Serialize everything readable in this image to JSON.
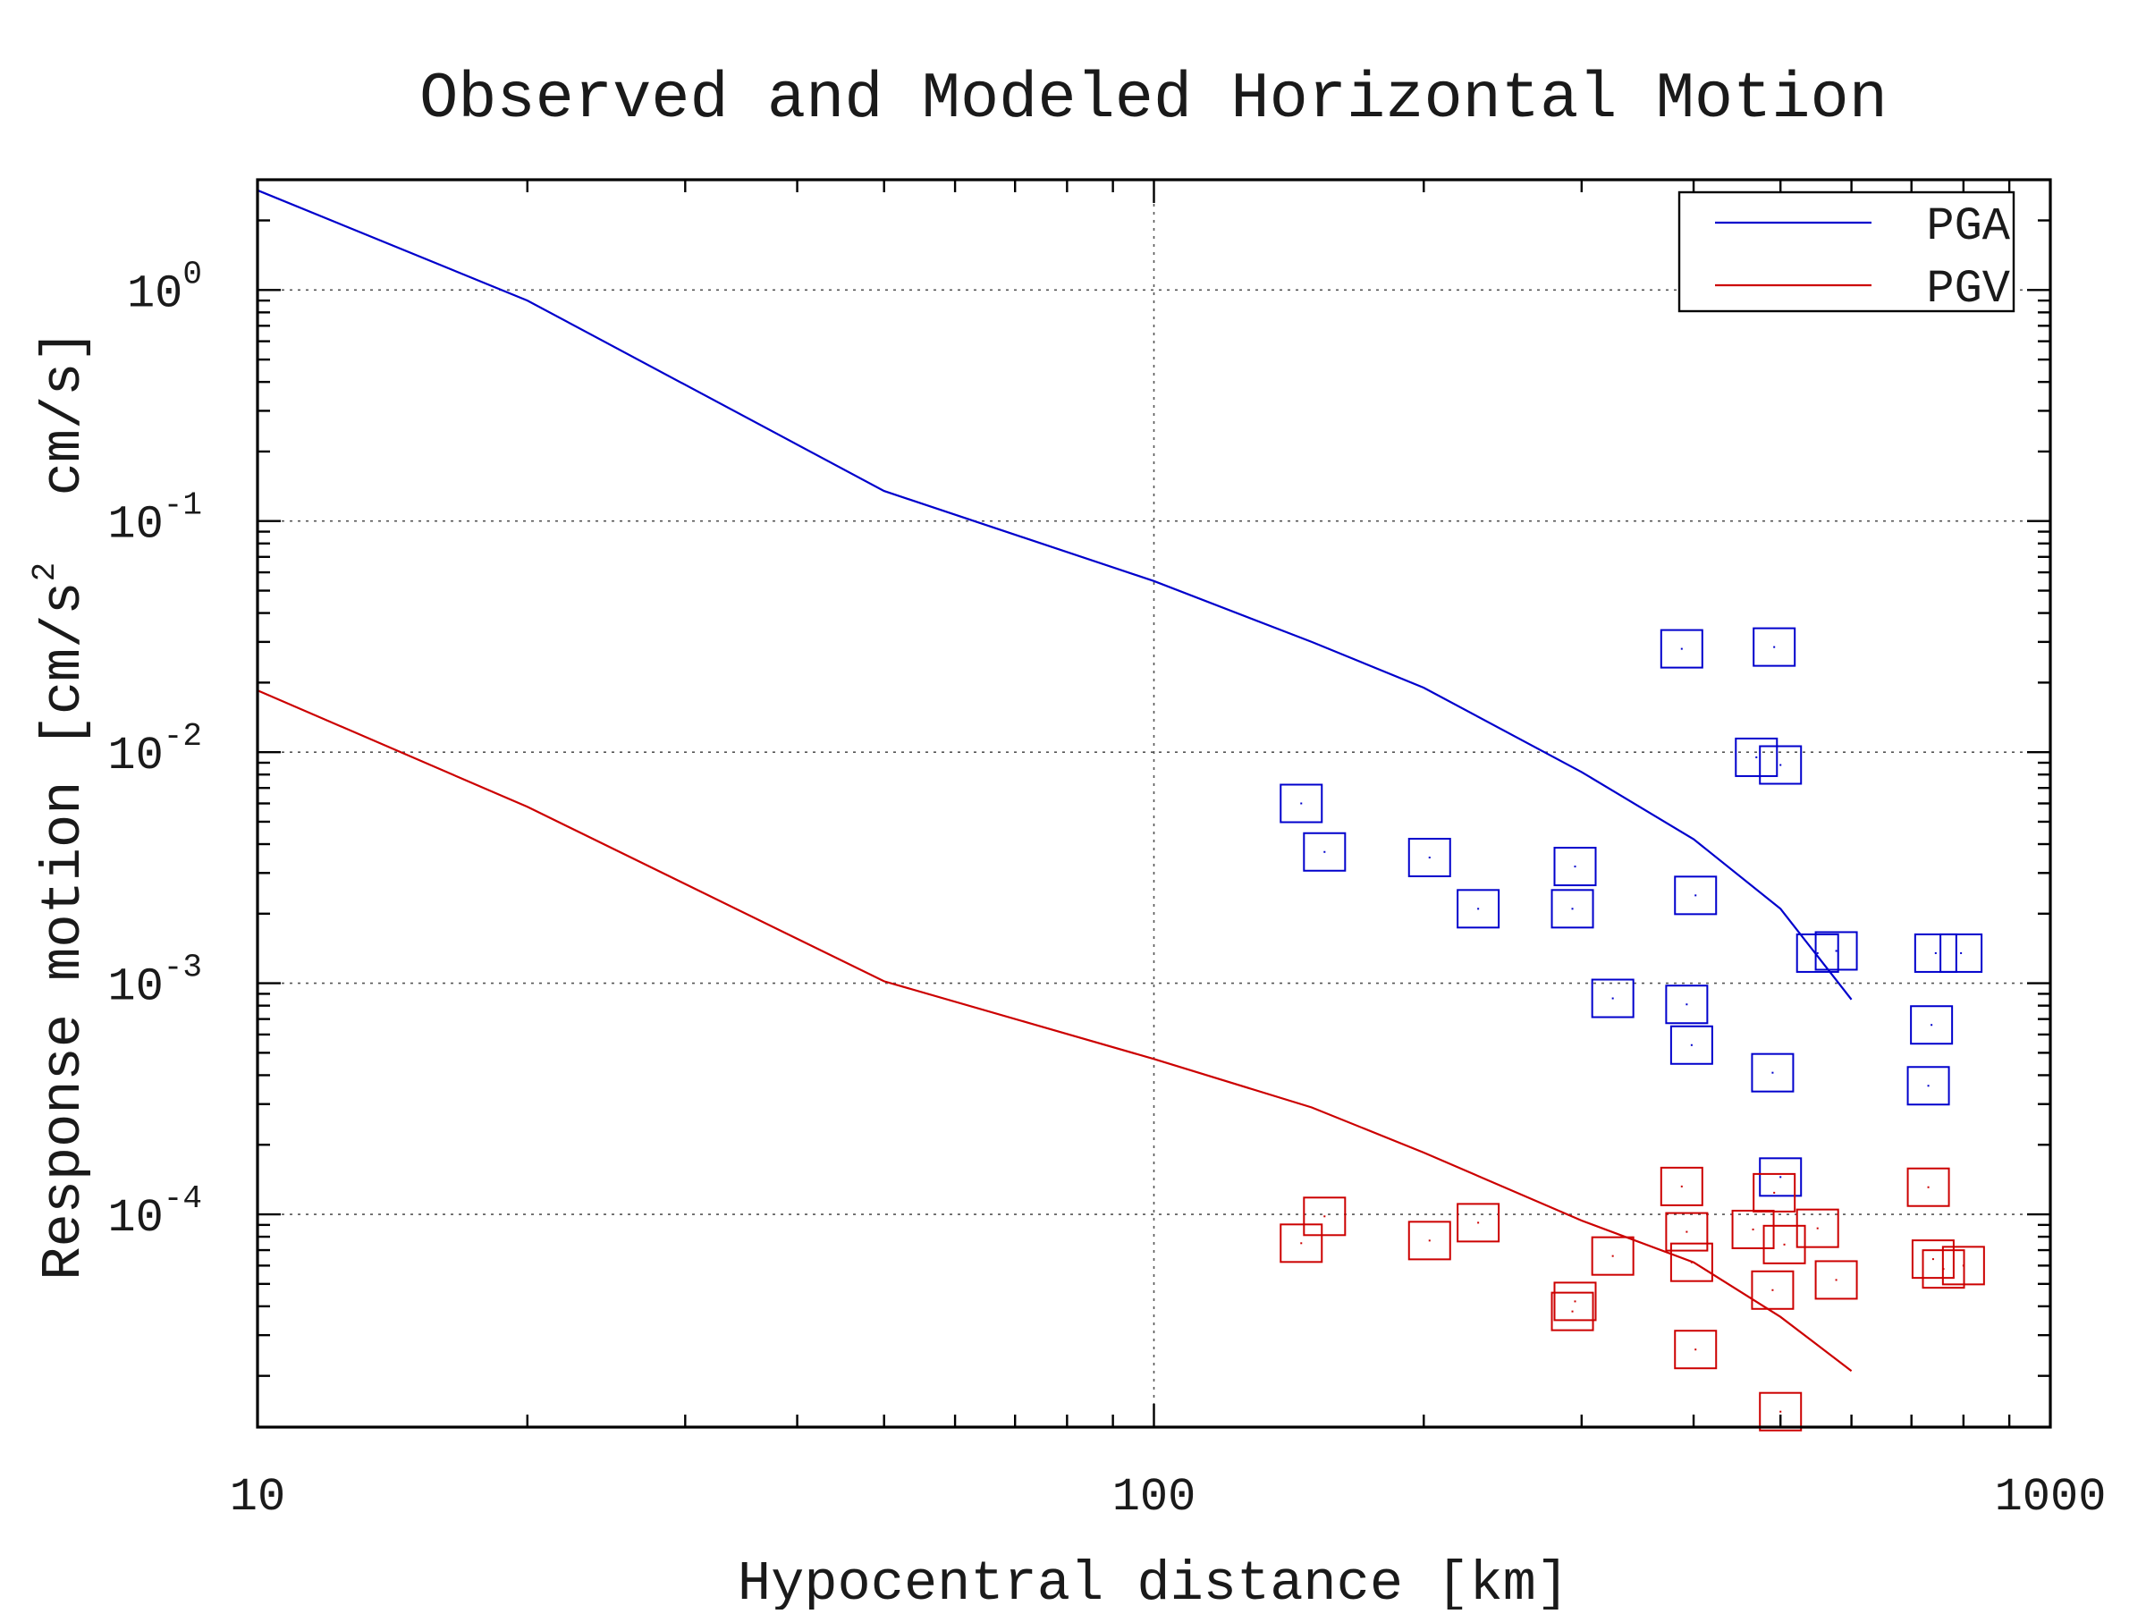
{
  "chart_data": {
    "type": "scatter",
    "title": "Observed and Modeled Horizontal Motion",
    "xlabel": "Hypocentral distance [km]",
    "ylabel": {
      "text_before_sup": "Response motion [cm/s",
      "sup": "2",
      "text_after_sup": "  cm/s]"
    },
    "x_scale": "log",
    "y_scale": "log",
    "xlim": [
      10,
      1000
    ],
    "ylim": [
      1.2e-05,
      3.0
    ],
    "x_ticks": [
      {
        "value": 10,
        "label": "10"
      },
      {
        "value": 100,
        "label": "100"
      },
      {
        "value": 1000,
        "label": "1000"
      }
    ],
    "y_ticks": [
      {
        "value": 1,
        "base": "10",
        "exp": "0"
      },
      {
        "value": 0.1,
        "base": "10",
        "exp": "-1"
      },
      {
        "value": 0.01,
        "base": "10",
        "exp": "-2"
      },
      {
        "value": 0.001,
        "base": "10",
        "exp": "-3"
      },
      {
        "value": 0.0001,
        "base": "10",
        "exp": "-4"
      }
    ],
    "grid": true,
    "legend_position": "top-right",
    "series": [
      {
        "name": "PGA",
        "color": "#0000cc",
        "kind": "line",
        "points": [
          [
            10,
            2.7
          ],
          [
            20,
            0.9
          ],
          [
            50,
            0.135
          ],
          [
            100,
            0.055
          ],
          [
            150,
            0.03
          ],
          [
            200,
            0.019
          ],
          [
            300,
            0.0082
          ],
          [
            400,
            0.0042
          ],
          [
            500,
            0.0021
          ],
          [
            600,
            0.00085
          ]
        ]
      },
      {
        "name": "PGV",
        "color": "#cc0000",
        "kind": "line",
        "points": [
          [
            10,
            0.0185
          ],
          [
            20,
            0.0058
          ],
          [
            50,
            0.00102
          ],
          [
            100,
            0.00047
          ],
          [
            150,
            0.00029
          ],
          [
            200,
            0.000185
          ],
          [
            300,
            9.4e-05
          ],
          [
            400,
            6.2e-05
          ],
          [
            500,
            3.6e-05
          ],
          [
            600,
            2.1e-05
          ]
        ]
      },
      {
        "name": "",
        "color": "#0000cc",
        "kind": "markers",
        "points": [
          [
            388,
            0.028
          ],
          [
            492,
            0.0285
          ],
          [
            470,
            0.0095
          ],
          [
            500,
            0.0088
          ],
          [
            146,
            0.006
          ],
          [
            155,
            0.0037
          ],
          [
            203,
            0.0035
          ],
          [
            295,
            0.0032
          ],
          [
            230,
            0.0021
          ],
          [
            293,
            0.0021
          ],
          [
            402,
            0.0024
          ],
          [
            550,
            0.00135
          ],
          [
            577,
            0.00138
          ],
          [
            745,
            0.00135
          ],
          [
            795,
            0.00135
          ],
          [
            325,
            0.00086
          ],
          [
            393,
            0.00081
          ],
          [
            398,
            0.00054
          ],
          [
            737,
            0.00066
          ],
          [
            490,
            0.00041
          ],
          [
            731,
            0.00036
          ],
          [
            500,
            0.000145
          ]
        ]
      },
      {
        "name": "",
        "color": "#cc0000",
        "kind": "markers",
        "points": [
          [
            146,
            7.5e-05
          ],
          [
            155,
            9.8e-05
          ],
          [
            203,
            7.7e-05
          ],
          [
            230,
            9.2e-05
          ],
          [
            295,
            4.2e-05
          ],
          [
            293,
            3.8e-05
          ],
          [
            325,
            6.6e-05
          ],
          [
            388,
            0.000132
          ],
          [
            393,
            8.4e-05
          ],
          [
            398,
            6.2e-05
          ],
          [
            402,
            2.6e-05
          ],
          [
            466,
            8.6e-05
          ],
          [
            492,
            0.000124
          ],
          [
            490,
            4.7e-05
          ],
          [
            505,
            7.4e-05
          ],
          [
            550,
            8.7e-05
          ],
          [
            577,
            5.2e-05
          ],
          [
            500,
            1.4e-05
          ],
          [
            731,
            0.000131
          ],
          [
            740,
            6.4e-05
          ],
          [
            760,
            5.8e-05
          ],
          [
            800,
            6e-05
          ]
        ]
      }
    ]
  }
}
